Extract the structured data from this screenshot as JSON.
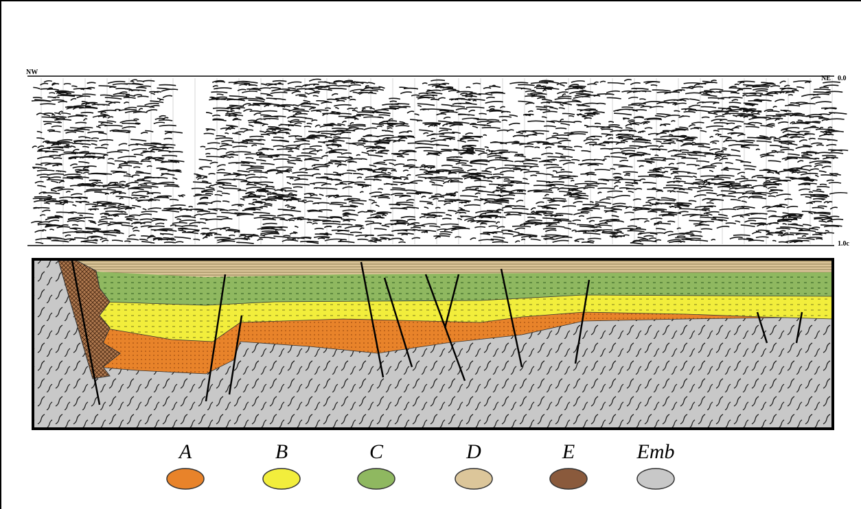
{
  "seismic": {
    "labels": {
      "left": "NW",
      "right": "NE",
      "top_time": "0.0",
      "bottom_time": "1.0c"
    }
  },
  "legend": {
    "items": [
      {
        "label": "A",
        "color": "#e8832a"
      },
      {
        "label": "B",
        "color": "#f2ee3c"
      },
      {
        "label": "C",
        "color": "#8fb860"
      },
      {
        "label": "D",
        "color": "#dcc69a"
      },
      {
        "label": "E",
        "color": "#8a5a3c"
      },
      {
        "label": "Emb",
        "color": "#c8c8c8"
      }
    ]
  }
}
